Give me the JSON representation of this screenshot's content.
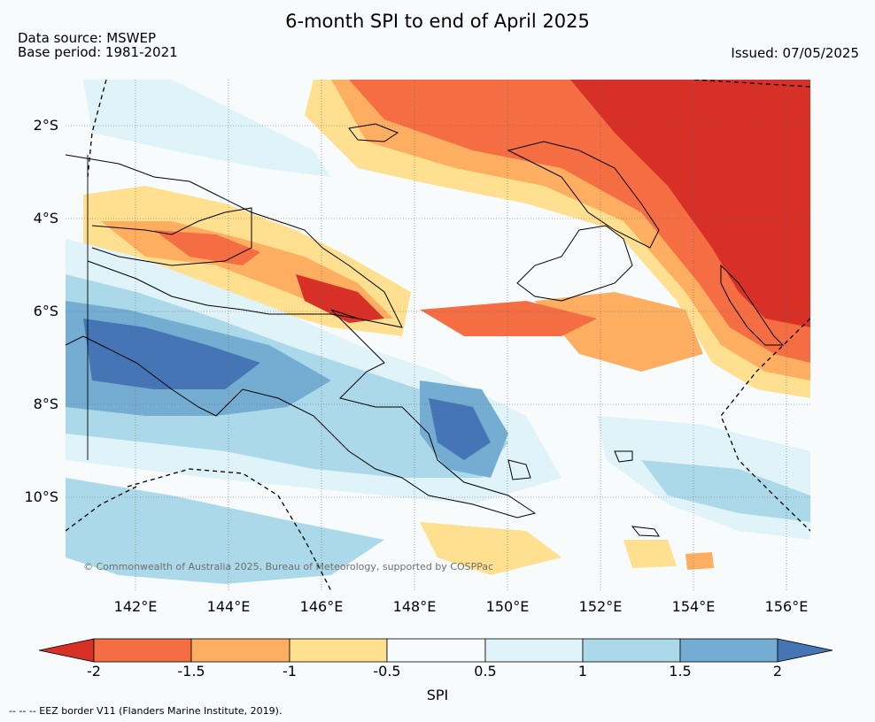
{
  "title": "6-month SPI to end of April 2025",
  "source_line": "Data source: MSWEP",
  "base_line": "Base period: 1981-2021",
  "issued": "Issued: 07/05/2025",
  "credit": "© Commonwealth of Australia 2025, Bureau of Meteorology, supported by COSPPac",
  "footnote": "-- -- -- EEZ border V11 (Flanders Marine Institute, 2019).",
  "lat_labels": [
    "2°S",
    "4°S",
    "6°S",
    "8°S",
    "10°S"
  ],
  "lon_labels": [
    "142°E",
    "144°E",
    "146°E",
    "148°E",
    "150°E",
    "152°E",
    "154°E",
    "156°E"
  ],
  "colorbar": {
    "label": "SPI",
    "ticks": [
      "-2",
      "-1.5",
      "-1",
      "-0.5",
      "0.5",
      "1",
      "1.5",
      "2"
    ],
    "colors": [
      "#d73027",
      "#f46d43",
      "#fdae61",
      "#fee090",
      "#f7fbfb",
      "#e0f3f8",
      "#abd9e9",
      "#74add1",
      "#4575b4"
    ]
  },
  "map_colors": {
    "ocean_neutral": "#f7fbfb",
    "coastline": "#000000"
  }
}
